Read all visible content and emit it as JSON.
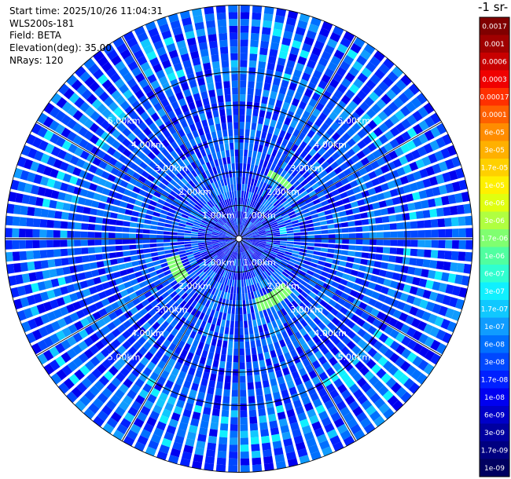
{
  "info": {
    "start_time": "Start time: 2025/10/26 11:04:31",
    "instrument": "WLS200s-181",
    "field": "Field: BETA",
    "elevation": "Elevation(deg): 35.00",
    "nrays": "NRays: 120"
  },
  "colorbar": {
    "title": "-1 sr-",
    "ticks": [
      "0.0017",
      "0.001",
      "0.0006",
      "0.0003",
      "0.00017",
      "0.0001",
      "6e-05",
      "3e-05",
      "1.7e-05",
      "1e-05",
      "6e-06",
      "3e-06",
      "1.7e-06",
      "1e-06",
      "6e-07",
      "3e-07",
      "1.7e-07",
      "1e-07",
      "6e-08",
      "3e-08",
      "1.7e-08",
      "1e-08",
      "6e-09",
      "3e-09",
      "1.7e-09",
      "1e-09"
    ],
    "colors": [
      "#800000",
      "#a00000",
      "#c80000",
      "#f00000",
      "#ff3000",
      "#ff6000",
      "#ff8c00",
      "#ffb000",
      "#ffd000",
      "#fff000",
      "#e0ff10",
      "#b0ff40",
      "#80ff70",
      "#50ffa0",
      "#30ffd0",
      "#10f0ff",
      "#10c8ff",
      "#109cff",
      "#0070ff",
      "#0048ff",
      "#0020ff",
      "#0000f0",
      "#0000c8",
      "#0000a0",
      "#000080",
      "#000060"
    ]
  },
  "chart_data": {
    "type": "heatmap",
    "projection": "polar PPI",
    "field": "BETA",
    "units": "-1 sr-",
    "elevation_deg": 35.0,
    "n_rays": 120,
    "range_rings_km": [
      1,
      2,
      3,
      4,
      5
    ],
    "range_labels": [
      "1.00km",
      "2.00km",
      "3.00km",
      "4.00km",
      "5.00km"
    ],
    "max_range_km": 7.0,
    "color_scale": "log",
    "value_range": [
      1e-09,
      0.0017
    ],
    "dominant_value": 3e-08,
    "features": [
      {
        "description": "elevated backscatter arc",
        "azimuth_deg": [
          25,
          45
        ],
        "range_km": [
          2.0,
          2.3
        ],
        "value": 1.7e-06
      },
      {
        "description": "elevated backscatter arc",
        "azimuth_deg": [
          135,
          165
        ],
        "range_km": [
          1.9,
          2.3
        ],
        "value": 1.7e-06
      },
      {
        "description": "elevated backscatter arc",
        "azimuth_deg": [
          235,
          255
        ],
        "range_km": [
          1.8,
          2.2
        ],
        "value": 1.7e-06
      },
      {
        "description": "elevated backscatter patch",
        "azimuth_deg": [
          75,
          85
        ],
        "range_km": [
          1.2,
          1.5
        ],
        "value": 3e-07
      }
    ]
  }
}
